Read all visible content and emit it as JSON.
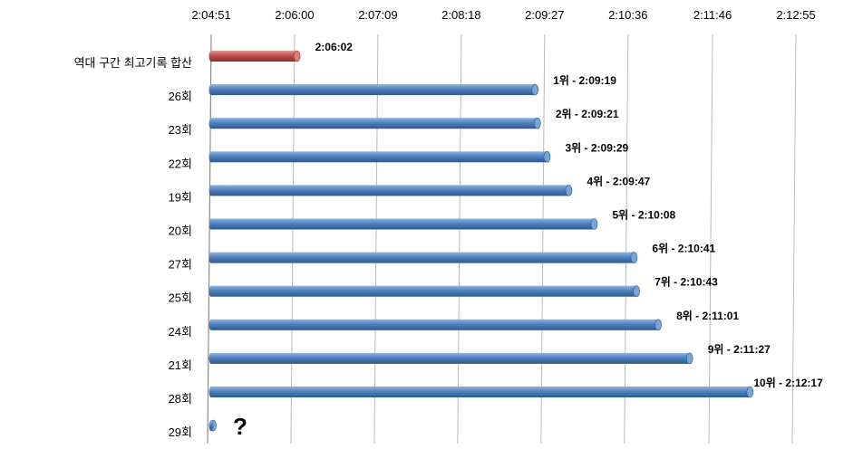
{
  "chart_data": {
    "type": "bar",
    "orientation": "horizontal",
    "title": "",
    "xlabel": "",
    "ylabel": "",
    "x_ticks": [
      "2:04:51",
      "2:06:00",
      "2:07:09",
      "2:08:18",
      "2:09:27",
      "2:10:36",
      "2:11:46",
      "2:12:55"
    ],
    "xlim": [
      "2:04:51",
      "2:12:55"
    ],
    "grid": "vertical",
    "legend": "none",
    "categories": [
      "역대 구간 최고기록 합산",
      "26회",
      "23회",
      "22회",
      "19회",
      "20회",
      "27회",
      "25회",
      "24회",
      "21회",
      "28회",
      "29회"
    ],
    "values": [
      "2:06:02",
      "2:09:19",
      "2:09:21",
      "2:09:29",
      "2:09:47",
      "2:10:08",
      "2:10:41",
      "2:10:43",
      "2:11:01",
      "2:11:27",
      "2:12:17",
      null
    ],
    "data_labels": [
      {
        "rank": "",
        "time": "2:06:02"
      },
      {
        "rank": "1",
        "time": "2:09:19"
      },
      {
        "rank": "2",
        "time": "2:09:21"
      },
      {
        "rank": "3",
        "time": "2:09:29"
      },
      {
        "rank": "4",
        "time": "2:09:47"
      },
      {
        "rank": "5",
        "time": "2:10:08"
      },
      {
        "rank": "6",
        "time": "2:10:41"
      },
      {
        "rank": "7",
        "time": "2:10:43"
      },
      {
        "rank": "8",
        "time": "2:11:01"
      },
      {
        "rank": "9",
        "time": "2:11:27"
      },
      {
        "rank": "10",
        "time": "2:12:17"
      },
      {
        "rank": "",
        "time": "?"
      }
    ],
    "rank_suffix": "위",
    "separator": " - ",
    "colors": {
      "highlight": "#c0504d",
      "bars": "#4f81bd"
    }
  }
}
